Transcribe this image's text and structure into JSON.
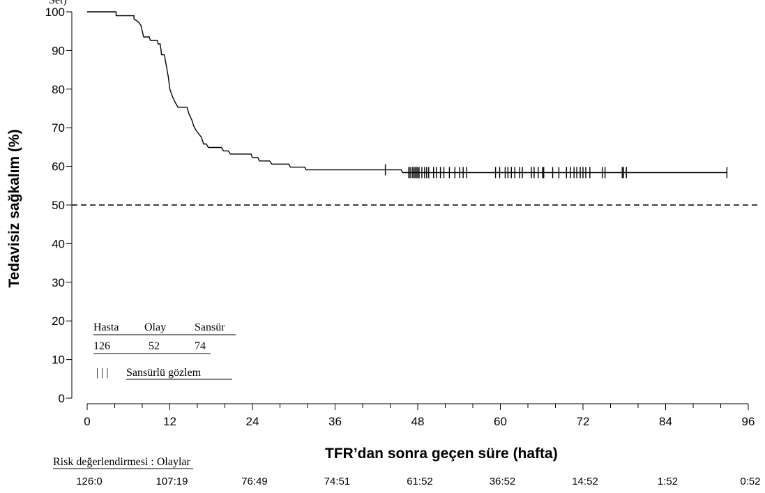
{
  "chart_data": {
    "type": "line",
    "top_fragment": "Set)",
    "ylabel": "Tedavisiz sağkalım (%)",
    "xlabel": "TFR’dan sonra geçen süre (hafta)",
    "ylim": [
      0,
      100
    ],
    "xlim": [
      0,
      96
    ],
    "y_ticks": [
      0,
      10,
      20,
      30,
      40,
      50,
      60,
      70,
      80,
      90,
      100
    ],
    "x_ticks": [
      0,
      12,
      24,
      36,
      48,
      60,
      72,
      84,
      96
    ],
    "reference_line_y": 50,
    "series": [
      {
        "step_points": [
          [
            0,
            100
          ],
          [
            4.2,
            100
          ],
          [
            4.2,
            99
          ],
          [
            6.8,
            99
          ],
          [
            6.8,
            98.2
          ],
          [
            7.5,
            97.3
          ],
          [
            7.8,
            96.5
          ],
          [
            8.0,
            95
          ],
          [
            8.2,
            93.5
          ],
          [
            9.0,
            93.5
          ],
          [
            9.2,
            92.6
          ],
          [
            10.2,
            92.6
          ],
          [
            10.3,
            91.7
          ],
          [
            10.6,
            91.7
          ],
          [
            10.8,
            88.9
          ],
          [
            11.2,
            88.9
          ],
          [
            11.5,
            86
          ],
          [
            11.8,
            83
          ],
          [
            12.0,
            80
          ],
          [
            12.4,
            78
          ],
          [
            12.8,
            76.5
          ],
          [
            13.2,
            75.3
          ],
          [
            14.5,
            75.3
          ],
          [
            14.8,
            73.5
          ],
          [
            15.2,
            72
          ],
          [
            15.5,
            70.3
          ],
          [
            15.8,
            69.4
          ],
          [
            16.2,
            68.4
          ],
          [
            16.6,
            67.5
          ],
          [
            16.9,
            65.8
          ],
          [
            17.3,
            65.8
          ],
          [
            17.6,
            64.9
          ],
          [
            19.5,
            64.9
          ],
          [
            19.8,
            64
          ],
          [
            20.5,
            64
          ],
          [
            20.8,
            63.2
          ],
          [
            23.8,
            63.2
          ],
          [
            24.0,
            62.3
          ],
          [
            24.8,
            62.3
          ],
          [
            25.0,
            61.4
          ],
          [
            26.5,
            61.4
          ],
          [
            26.8,
            60.6
          ],
          [
            29.3,
            60.6
          ],
          [
            29.5,
            59.8
          ],
          [
            31.6,
            59.8
          ],
          [
            31.8,
            59.1
          ],
          [
            45.6,
            59.1
          ],
          [
            45.8,
            58.4
          ],
          [
            92.9,
            58.4
          ]
        ],
        "censor_times": [
          43.3,
          46.7,
          46.9,
          47.2,
          47.4,
          47.6,
          47.8,
          48.0,
          48.2,
          48.6,
          49.0,
          49.3,
          49.6,
          50.3,
          50.7,
          51.3,
          51.8,
          52.6,
          53.4,
          54.1,
          54.6,
          55.1,
          59.3,
          59.9,
          60.7,
          61.1,
          61.6,
          62.1,
          62.8,
          63.2,
          64.5,
          64.9,
          65.5,
          66.1,
          66.3,
          67.6,
          68.5,
          69.6,
          70.2,
          70.7,
          71.1,
          71.6,
          72.0,
          72.4,
          73.0,
          74.8,
          75.2,
          77.7,
          77.9,
          78.3,
          92.9
        ]
      }
    ],
    "summary_table": {
      "headers": [
        "Hasta",
        "Olay",
        "Sansür"
      ],
      "values": [
        "126",
        "52",
        "74"
      ],
      "censor_symbol": "| | |",
      "censor_label": "Sansürlü gözlem"
    },
    "risk_table": {
      "label": "Risk değerlendirmesi : Olaylar",
      "values": [
        "126:0",
        "107:19",
        "76:49",
        "74:51",
        "61:52",
        "36:52",
        "14:52",
        "1:52",
        "0:52"
      ]
    }
  }
}
